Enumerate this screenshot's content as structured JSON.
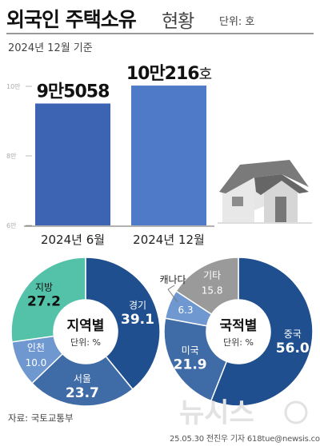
{
  "header": {
    "title_main": "외국인 주택소유",
    "title_sub": "현황",
    "unit": "단위: 호",
    "date_note": "2024년 12월 기준"
  },
  "colors": {
    "bar": "#3d63b3",
    "bar_light": "#4f7ac8",
    "navy": "#1f4f8e",
    "mid_blue": "#3f6ba6",
    "light_blue": "#6f98d0",
    "teal": "#53c2a8",
    "gray": "#9a9a9a",
    "roof": "#737373",
    "wall": "#dcdcdc"
  },
  "chart_data": [
    {
      "type": "bar",
      "categories": [
        "2024년 6월",
        "2024년 12월"
      ],
      "values": [
        95058,
        100216
      ],
      "value_labels": [
        {
          "main": "9만5058",
          "unit": ""
        },
        {
          "main": "10만216",
          "unit": "호"
        }
      ],
      "ylim": [
        60000,
        100000
      ],
      "yticks": [
        {
          "value": 100000,
          "label": "10만"
        },
        {
          "value": 80000,
          "label": "8만"
        },
        {
          "value": 60000,
          "label": "6만"
        }
      ]
    },
    {
      "type": "pie",
      "center_title": "지역별",
      "center_unit": "단위: %",
      "slices": [
        {
          "label": "경기",
          "value": 39.1
        },
        {
          "label": "서울",
          "value": 23.7
        },
        {
          "label": "인천",
          "value": 10.0
        },
        {
          "label": "지방",
          "value": 27.2
        }
      ]
    },
    {
      "type": "pie",
      "center_title": "국적별",
      "center_unit": "단위: %",
      "slices": [
        {
          "label": "중국",
          "value": 56.0
        },
        {
          "label": "미국",
          "value": 21.9
        },
        {
          "label": "캐나다",
          "value": 6.3
        },
        {
          "label": "기타",
          "value": 15.8
        }
      ]
    }
  ],
  "footer": {
    "source": "자료: 국토교통부",
    "logo_text": "뉴시스",
    "credit": "25.05.30 전진우 기자 618tue@newsis.com"
  }
}
